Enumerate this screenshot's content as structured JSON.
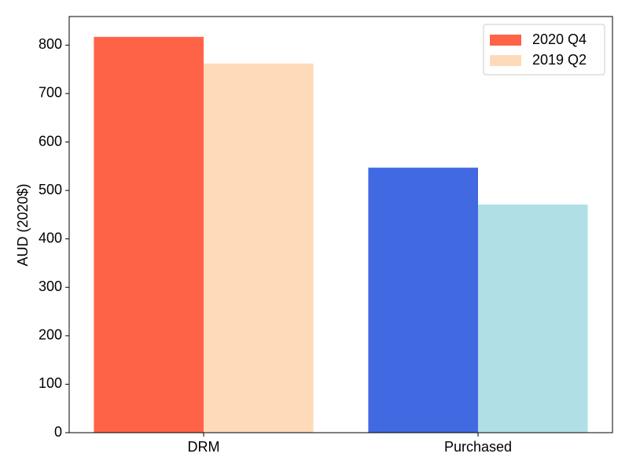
{
  "chart_data": {
    "type": "bar",
    "y_label": "AUD (2020$)",
    "categories": [
      "DRM",
      "Purchased"
    ],
    "series": [
      {
        "name": "2020 Q4",
        "colors": [
          "#ff6347",
          "#4169e1"
        ],
        "values": [
          817,
          547
        ]
      },
      {
        "name": "2019 Q2",
        "colors": [
          "#ffdab9",
          "#b0e0e6"
        ],
        "values": [
          762,
          471
        ]
      }
    ],
    "ylim": [
      0,
      859
    ],
    "yticks": [
      0,
      100,
      200,
      300,
      400,
      500,
      600,
      700,
      800
    ],
    "legend": "upper-right"
  }
}
